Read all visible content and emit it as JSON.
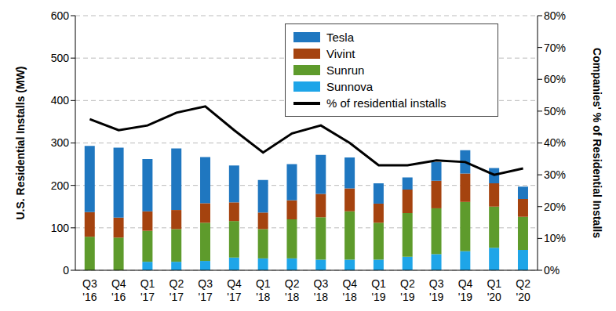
{
  "chart_data": {
    "type": "bar",
    "stacked": true,
    "grid": true,
    "legend": "upper right",
    "y_label": "U.S. Residential Installs (MW)",
    "y2_label": "Companies' % of Residential Installs",
    "categories": [
      "Q3 '16",
      "Q4 '16",
      "Q1 '17",
      "Q2 '17",
      "Q3 '17",
      "Q4 '17",
      "Q1 '18",
      "Q2 '18",
      "Q3 '18",
      "Q4 '18",
      "Q1 '19",
      "Q2 '19",
      "Q3 '19",
      "Q4 '19",
      "Q1 '20",
      "Q2 '20"
    ],
    "ylim": [
      0,
      600
    ],
    "yticks": [
      0,
      100,
      200,
      300,
      400,
      500,
      600
    ],
    "y2lim": [
      0,
      80
    ],
    "y2ticks": [
      {
        "value": 0,
        "label": "0%"
      },
      {
        "value": 10,
        "label": "10%"
      },
      {
        "value": 20,
        "label": "20%"
      },
      {
        "value": 30,
        "label": "30%"
      },
      {
        "value": 40,
        "label": "40%"
      },
      {
        "value": 50,
        "label": "50%"
      },
      {
        "value": 60,
        "label": "60%"
      },
      {
        "value": 70,
        "label": "70%"
      },
      {
        "value": 80,
        "label": "80%"
      }
    ],
    "series": [
      {
        "name": "Tesla",
        "type": "bar",
        "color": "#1f77c0",
        "values": [
          156,
          165,
          123,
          145,
          109,
          87,
          77,
          85,
          92,
          73,
          48,
          29,
          44,
          55,
          36,
          29
        ]
      },
      {
        "name": "Vivint",
        "type": "bar",
        "color": "#a5430f",
        "values": [
          58,
          47,
          46,
          45,
          46,
          44,
          39,
          45,
          55,
          54,
          45,
          55,
          65,
          67,
          55,
          42
        ]
      },
      {
        "name": "Sunrun",
        "type": "bar",
        "color": "#5e9b2c",
        "values": [
          79,
          77,
          73,
          77,
          90,
          86,
          69,
          92,
          100,
          114,
          87,
          103,
          108,
          116,
          97,
          78
        ]
      },
      {
        "name": "Sunnova",
        "type": "bar",
        "color": "#1ea5e8",
        "values": [
          0,
          0,
          20,
          20,
          22,
          30,
          28,
          28,
          25,
          25,
          25,
          32,
          38,
          45,
          53,
          48
        ]
      },
      {
        "name": "% of residential installs",
        "type": "line",
        "axis": "y2",
        "color": "#000000",
        "values": [
          47.5,
          44,
          45.5,
          49.5,
          51.5,
          44,
          37,
          43,
          45.5,
          40,
          33,
          33,
          34.5,
          34,
          30,
          32
        ]
      }
    ]
  }
}
